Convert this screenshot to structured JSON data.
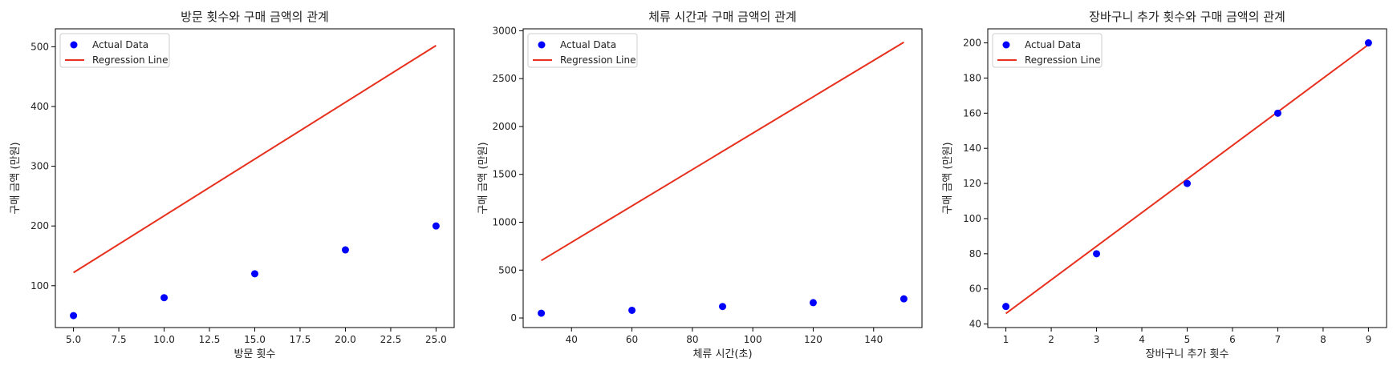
{
  "chart_data": [
    {
      "type": "scatter",
      "title": "방문 횟수와 구매 금액의 관계",
      "xlabel": "방문 횟수",
      "ylabel": "구매 금액 (만원)",
      "xlim": [
        4.0,
        26.0
      ],
      "ylim": [
        30,
        530
      ],
      "xticks": [
        5.0,
        7.5,
        10.0,
        12.5,
        15.0,
        17.5,
        20.0,
        22.5,
        25.0
      ],
      "xtick_labels": [
        "5.0",
        "7.5",
        "10.0",
        "12.5",
        "15.0",
        "17.5",
        "20.0",
        "22.5",
        "25.0"
      ],
      "yticks": [
        100,
        200,
        300,
        400,
        500
      ],
      "ytick_labels": [
        "100",
        "200",
        "300",
        "400",
        "500"
      ],
      "legend_position": "top-left",
      "grid": false,
      "series": [
        {
          "name": "Actual Data",
          "kind": "scatter",
          "color": "#0000ff",
          "x": [
            5,
            10,
            15,
            20,
            25
          ],
          "y": [
            50,
            80,
            120,
            160,
            200
          ]
        },
        {
          "name": "Regression Line",
          "kind": "line",
          "color": "#e8301e",
          "x": [
            5,
            25
          ],
          "y": [
            122,
            502
          ]
        }
      ]
    },
    {
      "type": "scatter",
      "title": "체류 시간과 구매 금액의 관계",
      "xlabel": "체류 시간(초)",
      "ylabel": "구매 금액 (만원)",
      "xlim": [
        24,
        156
      ],
      "ylim": [
        -100,
        3020
      ],
      "xticks": [
        40,
        60,
        80,
        100,
        120,
        140
      ],
      "xtick_labels": [
        "40",
        "60",
        "80",
        "100",
        "120",
        "140"
      ],
      "yticks": [
        0,
        500,
        1000,
        1500,
        2000,
        2500,
        3000
      ],
      "ytick_labels": [
        "0",
        "500",
        "1000",
        "1500",
        "2000",
        "2500",
        "3000"
      ],
      "legend_position": "top-left",
      "grid": false,
      "series": [
        {
          "name": "Actual Data",
          "kind": "scatter",
          "color": "#0000ff",
          "x": [
            30,
            60,
            90,
            120,
            150
          ],
          "y": [
            50,
            80,
            120,
            160,
            200
          ]
        },
        {
          "name": "Regression Line",
          "kind": "line",
          "color": "#e8301e",
          "x": [
            30,
            150
          ],
          "y": [
            600,
            2880
          ]
        }
      ]
    },
    {
      "type": "scatter",
      "title": "장바구니 추가 횟수와 구매 금액의 관계",
      "xlabel": "장바구니 추가 횟수",
      "ylabel": "구매 금액 (만원)",
      "xlim": [
        0.6,
        9.4
      ],
      "ylim": [
        38,
        208
      ],
      "xticks": [
        1,
        2,
        3,
        4,
        5,
        6,
        7,
        8,
        9
      ],
      "xtick_labels": [
        "1",
        "2",
        "3",
        "4",
        "5",
        "6",
        "7",
        "8",
        "9"
      ],
      "yticks": [
        40,
        60,
        80,
        100,
        120,
        140,
        160,
        180,
        200
      ],
      "ytick_labels": [
        "40",
        "60",
        "80",
        "100",
        "120",
        "140",
        "160",
        "180",
        "200"
      ],
      "legend_position": "top-left",
      "grid": false,
      "series": [
        {
          "name": "Actual Data",
          "kind": "scatter",
          "color": "#0000ff",
          "x": [
            1,
            3,
            5,
            7,
            9
          ],
          "y": [
            50,
            80,
            120,
            160,
            200
          ]
        },
        {
          "name": "Regression Line",
          "kind": "line",
          "color": "#e8301e",
          "x": [
            1,
            9
          ],
          "y": [
            46,
            199
          ]
        }
      ]
    }
  ]
}
